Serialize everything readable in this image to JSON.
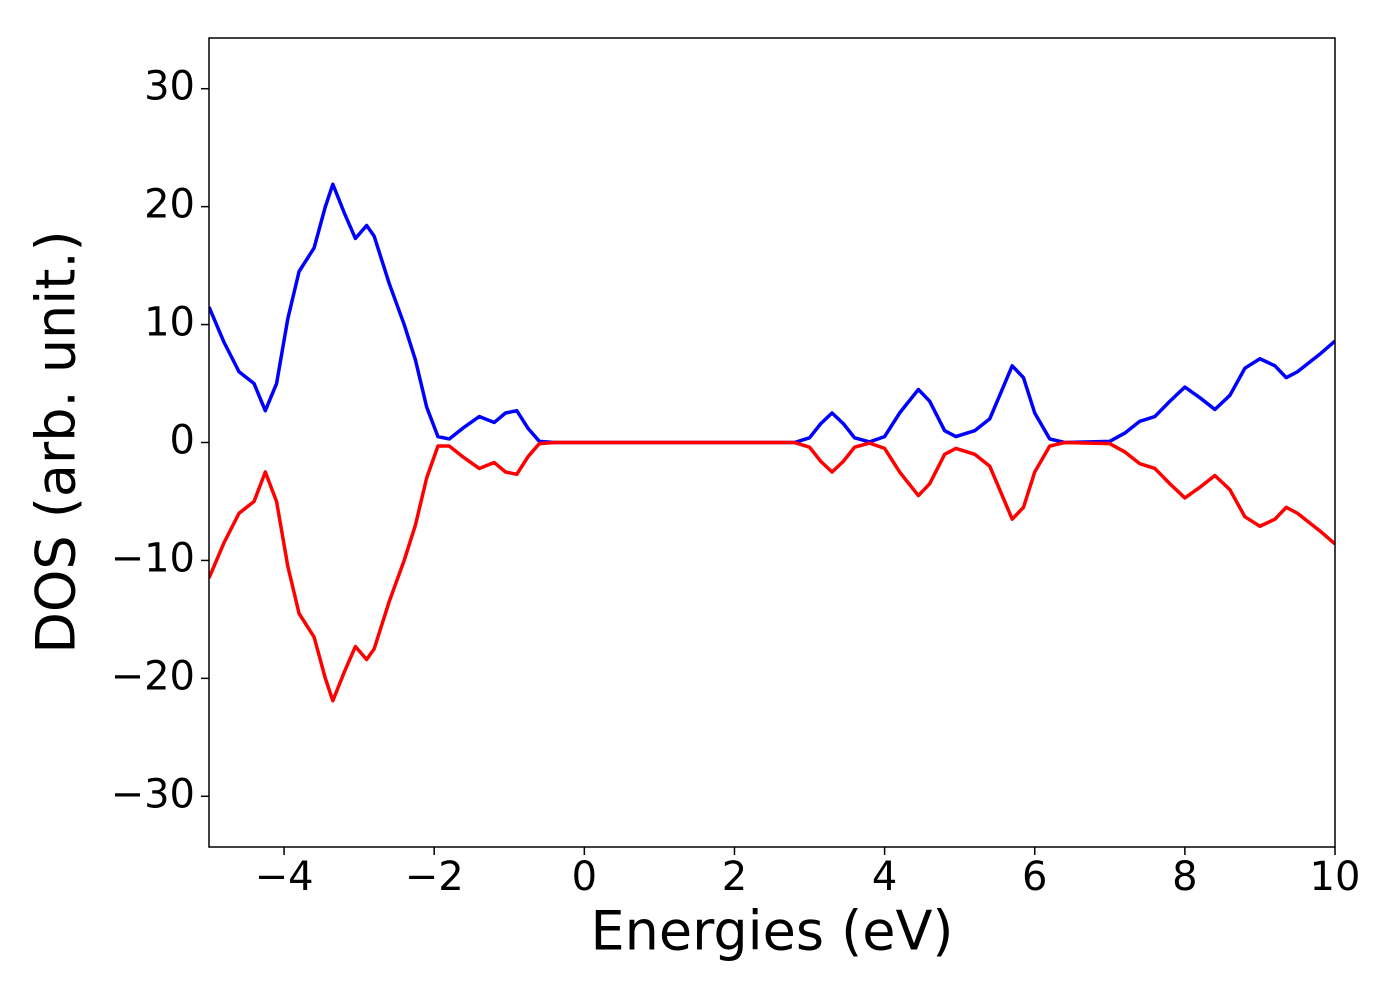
{
  "chart_data": {
    "type": "line",
    "xlabel": "Energies (eV)",
    "ylabel": "DOS (arb. unit.)",
    "x": [
      -5,
      -4.8,
      -4.6,
      -4.4,
      -4.25,
      -4.1,
      -3.95,
      -3.8,
      -3.6,
      -3.45,
      -3.35,
      -3.2,
      -3.05,
      -2.9,
      -2.8,
      -2.6,
      -2.4,
      -2.25,
      -2.1,
      -1.95,
      -1.8,
      -1.6,
      -1.4,
      -1.2,
      -1.05,
      -0.9,
      -0.75,
      -0.6,
      -0.4,
      0,
      1,
      2,
      2.8,
      3.0,
      3.15,
      3.3,
      3.45,
      3.6,
      3.8,
      4.0,
      4.2,
      4.45,
      4.6,
      4.8,
      4.95,
      5.2,
      5.4,
      5.6,
      5.7,
      5.85,
      6.0,
      6.2,
      6.4,
      7.0,
      7.2,
      7.4,
      7.6,
      7.8,
      8.0,
      8.2,
      8.4,
      8.6,
      8.8,
      9.0,
      9.2,
      9.35,
      9.5,
      9.8,
      10.0
    ],
    "series": [
      {
        "color": "#0000ff",
        "values": [
          11.5,
          8.5,
          6,
          5,
          2.7,
          5,
          10.5,
          14.5,
          16.5,
          20,
          21.9,
          19.5,
          17.3,
          18.4,
          17.5,
          13.5,
          10,
          7,
          3,
          0.5,
          0.3,
          1.3,
          2.2,
          1.7,
          2.5,
          2.7,
          1.2,
          0.1,
          0,
          0,
          0,
          0,
          0,
          0.4,
          1.6,
          2.5,
          1.6,
          0.4,
          0.05,
          0.5,
          2.5,
          4.5,
          3.5,
          1,
          0.5,
          1,
          2,
          5,
          6.5,
          5.5,
          2.5,
          0.3,
          0,
          0.1,
          0.8,
          1.8,
          2.2,
          3.5,
          4.7,
          3.8,
          2.8,
          4,
          6.3,
          7.1,
          6.5,
          5.5,
          6,
          7.5,
          8.6
        ]
      },
      {
        "color": "#ff0000",
        "values": [
          -11.5,
          -8.5,
          -6,
          -5,
          -2.5,
          -5,
          -10.5,
          -14.5,
          -16.5,
          -20,
          -21.9,
          -19.5,
          -17.3,
          -18.4,
          -17.5,
          -13.5,
          -10,
          -7,
          -3,
          -0.3,
          -0.3,
          -1.3,
          -2.2,
          -1.7,
          -2.5,
          -2.7,
          -1.2,
          -0.1,
          0,
          0,
          0,
          0,
          0,
          -0.4,
          -1.6,
          -2.5,
          -1.6,
          -0.4,
          -0.05,
          -0.5,
          -2.5,
          -4.5,
          -3.5,
          -1,
          -0.5,
          -1,
          -2,
          -5,
          -6.5,
          -5.5,
          -2.5,
          -0.3,
          0,
          -0.1,
          -0.8,
          -1.8,
          -2.2,
          -3.5,
          -4.7,
          -3.8,
          -2.8,
          -4,
          -6.3,
          -7.1,
          -6.5,
          -5.5,
          -6,
          -7.5,
          -8.6
        ]
      }
    ],
    "xlim": [
      -5,
      10
    ],
    "xticks": [
      {
        "value": -4,
        "label": "−4"
      },
      {
        "value": -2,
        "label": "−2"
      },
      0,
      2,
      4,
      6,
      8,
      10
    ],
    "ylim": [
      -34.3,
      34.3
    ],
    "yticks": [
      {
        "value": -30,
        "label": "−30"
      },
      {
        "value": -20,
        "label": "−20"
      },
      {
        "value": -10,
        "label": "−10"
      },
      0,
      10,
      20,
      30
    ],
    "grid": false
  }
}
